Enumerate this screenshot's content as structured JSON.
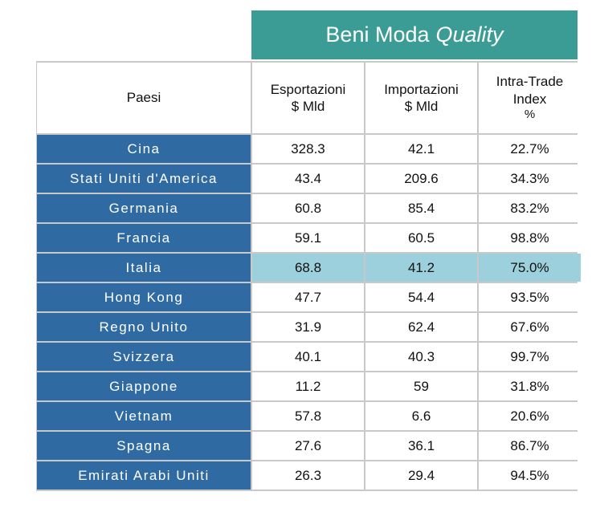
{
  "banner": {
    "main": "Beni Moda",
    "accent": "Quality"
  },
  "headers": {
    "country": "Paesi",
    "exports": [
      "Esportazioni",
      "$ Mld"
    ],
    "imports": [
      "Importazioni",
      "$ Mld"
    ],
    "iti": [
      "Intra-Trade",
      "Index",
      "%"
    ]
  },
  "highlight_color": "#9bd0dc",
  "country_color": "#2f6aa3",
  "banner_color": "#3a9c94",
  "chart_data": {
    "type": "table",
    "columns": [
      "Paesi",
      "Esportazioni $ Mld",
      "Importazioni $ Mld",
      "Intra-Trade Index %"
    ],
    "highlighted_row": "Italia",
    "rows": [
      {
        "country": "Cina",
        "exp": "328.3",
        "imp": "42.1",
        "iti": "22.7%"
      },
      {
        "country": "Stati Uniti d'America",
        "exp": "43.4",
        "imp": "209.6",
        "iti": "34.3%"
      },
      {
        "country": "Germania",
        "exp": "60.8",
        "imp": "85.4",
        "iti": "83.2%"
      },
      {
        "country": "Francia",
        "exp": "59.1",
        "imp": "60.5",
        "iti": "98.8%"
      },
      {
        "country": "Italia",
        "exp": "68.8",
        "imp": "41.2",
        "iti": "75.0%"
      },
      {
        "country": "Hong Kong",
        "exp": "47.7",
        "imp": "54.4",
        "iti": "93.5%"
      },
      {
        "country": "Regno Unito",
        "exp": "31.9",
        "imp": "62.4",
        "iti": "67.6%"
      },
      {
        "country": "Svizzera",
        "exp": "40.1",
        "imp": "40.3",
        "iti": "99.7%"
      },
      {
        "country": "Giappone",
        "exp": "11.2",
        "imp": "59",
        "iti": "31.8%"
      },
      {
        "country": "Vietnam",
        "exp": "57.8",
        "imp": "6.6",
        "iti": "20.6%"
      },
      {
        "country": "Spagna",
        "exp": "27.6",
        "imp": "36.1",
        "iti": "86.7%"
      },
      {
        "country": "Emirati Arabi Uniti",
        "exp": "26.3",
        "imp": "29.4",
        "iti": "94.5%"
      }
    ]
  }
}
